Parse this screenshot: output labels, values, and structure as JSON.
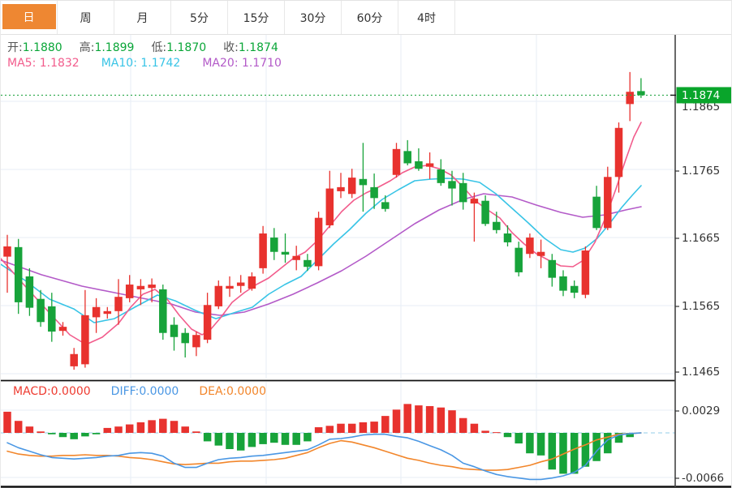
{
  "toolbar": {
    "tabs": [
      {
        "label": "日",
        "name": "tab-day",
        "active": true
      },
      {
        "label": "周",
        "name": "tab-week",
        "active": false
      },
      {
        "label": "月",
        "name": "tab-month",
        "active": false
      },
      {
        "label": "5分",
        "name": "tab-5min",
        "active": false
      },
      {
        "label": "15分",
        "name": "tab-15min",
        "active": false
      },
      {
        "label": "30分",
        "name": "tab-30min",
        "active": false
      },
      {
        "label": "60分",
        "name": "tab-60min",
        "active": false
      },
      {
        "label": "4时",
        "name": "tab-4hour",
        "active": false
      }
    ]
  },
  "info_row_ohlc": [
    {
      "label": "开:",
      "value": "1.1880"
    },
    {
      "label": "高:",
      "value": "1.1899"
    },
    {
      "label": "低:",
      "value": "1.1870"
    },
    {
      "label": "收:",
      "value": "1.1874"
    }
  ],
  "info_row_ma": [
    {
      "text": "MA5: 1.1832",
      "color": "#f25c8c"
    },
    {
      "text": "MA10: 1.1742",
      "color": "#38c4e6"
    },
    {
      "text": "MA20: 1.1710",
      "color": "#b35ac8"
    }
  ],
  "macd_row": [
    {
      "text": "MACD:0.0000",
      "color": "#ee3b30"
    },
    {
      "text": "DIFF:0.0000",
      "color": "#4a97e4"
    },
    {
      "text": "DEA:0.0000",
      "color": "#f2862b"
    }
  ],
  "colors": {
    "accent_tab": "#ee8732",
    "candle_up": "#e8322e",
    "candle_down": "#17a33a",
    "ma5": "#f25c8c",
    "ma10": "#38c4e6",
    "ma20": "#b35ac8",
    "ohlc_value": "#0aa638",
    "grid": "#e7edf5",
    "axis_text": "#333333",
    "axis_line": "#444444",
    "divider": "#111111",
    "price_box": "#09a52b",
    "dotted_price_line": "#2ba84a",
    "diff_line": "#4a97e4",
    "dea_line": "#f2862b",
    "macd_zero_dash": "#a9d7ee"
  },
  "chart_data": {
    "type": "candlestick",
    "panels": [
      "price",
      "MACD"
    ],
    "grid": true,
    "ohlc_display": {
      "open": "1.1880",
      "high": "1.1899",
      "low": "1.1870",
      "close": "1.1874"
    },
    "ma_display": {
      "MA5": "1.1832",
      "MA10": "1.1742",
      "MA20": "1.1710"
    },
    "y_axis_ticks": [
      "1.1865",
      "1.1765",
      "1.1665",
      "1.1565",
      "1.1465"
    ],
    "y_axis_tick_prices": [
      1.1865,
      1.1765,
      1.1665,
      1.1565,
      1.1465
    ],
    "current_price": "1.1874",
    "candles": [
      [
        1.1637,
        1.1669,
        1.1584,
        1.1652
      ],
      [
        1.1651,
        1.1663,
        1.1553,
        1.157
      ],
      [
        1.1608,
        1.162,
        1.155,
        1.1562
      ],
      [
        1.1575,
        1.1588,
        1.1534,
        1.1541
      ],
      [
        1.1564,
        1.1584,
        1.1512,
        1.1527
      ],
      [
        1.1528,
        1.1541,
        1.1521,
        1.1534
      ],
      [
        1.1476,
        1.1503,
        1.1471,
        1.1494
      ],
      [
        1.1479,
        1.1588,
        1.1474,
        1.1551
      ],
      [
        1.1548,
        1.1576,
        1.1525,
        1.1563
      ],
      [
        1.1553,
        1.1563,
        1.1546,
        1.1557
      ],
      [
        1.1557,
        1.1604,
        1.1537,
        1.1578
      ],
      [
        1.1576,
        1.161,
        1.157,
        1.1596
      ],
      [
        1.1589,
        1.1604,
        1.1566,
        1.1594
      ],
      [
        1.1591,
        1.1605,
        1.157,
        1.1596
      ],
      [
        1.1589,
        1.1596,
        1.1515,
        1.1525
      ],
      [
        1.1537,
        1.1548,
        1.1499,
        1.1519
      ],
      [
        1.1525,
        1.1532,
        1.1489,
        1.151
      ],
      [
        1.1504,
        1.1527,
        1.1491,
        1.1522
      ],
      [
        1.1515,
        1.1584,
        1.151,
        1.1566
      ],
      [
        1.1564,
        1.1602,
        1.156,
        1.1594
      ],
      [
        1.159,
        1.1608,
        1.1578,
        1.1594
      ],
      [
        1.1594,
        1.161,
        1.1584,
        1.1599
      ],
      [
        1.159,
        1.1614,
        1.1587,
        1.1608
      ],
      [
        1.162,
        1.1682,
        1.1612,
        1.1671
      ],
      [
        1.1665,
        1.1679,
        1.1632,
        1.1644
      ],
      [
        1.1644,
        1.1671,
        1.1628,
        1.164
      ],
      [
        1.1632,
        1.1653,
        1.1617,
        1.1638
      ],
      [
        1.1632,
        1.1641,
        1.1616,
        1.1622
      ],
      [
        1.1623,
        1.1703,
        1.1617,
        1.1694
      ],
      [
        1.1683,
        1.1763,
        1.1679,
        1.1737
      ],
      [
        1.1733,
        1.176,
        1.1723,
        1.1739
      ],
      [
        1.1729,
        1.1766,
        1.1723,
        1.1753
      ],
      [
        1.1751,
        1.1804,
        1.1703,
        1.1742
      ],
      [
        1.1739,
        1.1759,
        1.1707,
        1.1723
      ],
      [
        1.1717,
        1.1727,
        1.1703,
        1.1707
      ],
      [
        1.1757,
        1.1804,
        1.1753,
        1.1795
      ],
      [
        1.1792,
        1.1808,
        1.1771,
        1.1774
      ],
      [
        1.1777,
        1.1796,
        1.1763,
        1.1766
      ],
      [
        1.1769,
        1.179,
        1.1751,
        1.1774
      ],
      [
        1.1765,
        1.178,
        1.1741,
        1.1745
      ],
      [
        1.1748,
        1.1763,
        1.1712,
        1.1737
      ],
      [
        1.1745,
        1.176,
        1.1706,
        1.1717
      ],
      [
        1.1715,
        1.1731,
        1.1659,
        1.1722
      ],
      [
        1.1719,
        1.1727,
        1.1682,
        1.1685
      ],
      [
        1.1688,
        1.1703,
        1.1671,
        1.1676
      ],
      [
        1.1671,
        1.1683,
        1.1652,
        1.1658
      ],
      [
        1.165,
        1.1659,
        1.1608,
        1.1614
      ],
      [
        1.1641,
        1.1671,
        1.1635,
        1.1665
      ],
      [
        1.1638,
        1.1662,
        1.162,
        1.1644
      ],
      [
        1.1632,
        1.1641,
        1.1593,
        1.1606
      ],
      [
        1.1608,
        1.1617,
        1.1579,
        1.1587
      ],
      [
        1.1594,
        1.1602,
        1.1576,
        1.1584
      ],
      [
        1.1581,
        1.1652,
        1.1576,
        1.1646
      ],
      [
        1.1725,
        1.1741,
        1.1676,
        1.1679
      ],
      [
        1.1679,
        1.1769,
        1.1676,
        1.1754
      ],
      [
        1.1754,
        1.1834,
        1.1731,
        1.1826
      ],
      [
        1.1861,
        1.1908,
        1.1836,
        1.1879
      ],
      [
        1.188,
        1.1899,
        1.187,
        1.1874
      ]
    ],
    "ma5_points": [
      [
        0,
        1.16341
      ],
      [
        30,
        1.15937
      ],
      [
        60,
        1.15544
      ],
      [
        85,
        1.15223
      ],
      [
        105,
        1.1508
      ],
      [
        125,
        1.15187
      ],
      [
        145,
        1.15389
      ],
      [
        160,
        1.15627
      ],
      [
        175,
        1.15818
      ],
      [
        190,
        1.15889
      ],
      [
        205,
        1.15746
      ],
      [
        220,
        1.15508
      ],
      [
        235,
        1.15306
      ],
      [
        248,
        1.15223
      ],
      [
        258,
        1.15294
      ],
      [
        270,
        1.15461
      ],
      [
        285,
        1.15699
      ],
      [
        300,
        1.15842
      ],
      [
        315,
        1.15961
      ],
      [
        330,
        1.16056
      ],
      [
        345,
        1.16199
      ],
      [
        360,
        1.16341
      ],
      [
        375,
        1.16437
      ],
      [
        390,
        1.16603
      ],
      [
        405,
        1.16817
      ],
      [
        420,
        1.17032
      ],
      [
        435,
        1.17198
      ],
      [
        450,
        1.17305
      ],
      [
        465,
        1.17389
      ],
      [
        480,
        1.17484
      ],
      [
        495,
        1.17603
      ],
      [
        510,
        1.17686
      ],
      [
        525,
        1.1771
      ],
      [
        540,
        1.17662
      ],
      [
        555,
        1.17567
      ],
      [
        570,
        1.17389
      ],
      [
        585,
        1.17186
      ],
      [
        600,
        1.17055
      ],
      [
        615,
        1.16936
      ],
      [
        630,
        1.16722
      ],
      [
        645,
        1.16556
      ],
      [
        660,
        1.16413
      ],
      [
        675,
        1.16318
      ],
      [
        690,
        1.16234
      ],
      [
        705,
        1.16222
      ],
      [
        718,
        1.16318
      ],
      [
        732,
        1.16579
      ],
      [
        745,
        1.16936
      ],
      [
        758,
        1.17365
      ],
      [
        770,
        1.17793
      ],
      [
        780,
        1.18126
      ],
      [
        789,
        1.18341
      ]
    ],
    "ma10_points": [
      [
        0,
        1.16258
      ],
      [
        30,
        1.1602
      ],
      [
        60,
        1.15746
      ],
      [
        90,
        1.15603
      ],
      [
        115,
        1.15401
      ],
      [
        140,
        1.1546
      ],
      [
        165,
        1.15627
      ],
      [
        193,
        1.15806
      ],
      [
        215,
        1.15722
      ],
      [
        240,
        1.1558
      ],
      [
        265,
        1.1546
      ],
      [
        290,
        1.15556
      ],
      [
        310,
        1.15627
      ],
      [
        330,
        1.15818
      ],
      [
        350,
        1.15961
      ],
      [
        370,
        1.1608
      ],
      [
        390,
        1.16318
      ],
      [
        410,
        1.16556
      ],
      [
        430,
        1.1677
      ],
      [
        450,
        1.17008
      ],
      [
        470,
        1.1721
      ],
      [
        490,
        1.17353
      ],
      [
        510,
        1.17484
      ],
      [
        530,
        1.17508
      ],
      [
        550,
        1.1752
      ],
      [
        570,
        1.17508
      ],
      [
        590,
        1.1746
      ],
      [
        610,
        1.17293
      ],
      [
        630,
        1.17079
      ],
      [
        650,
        1.16865
      ],
      [
        670,
        1.16639
      ],
      [
        690,
        1.16472
      ],
      [
        705,
        1.16437
      ],
      [
        720,
        1.16496
      ],
      [
        735,
        1.16639
      ],
      [
        750,
        1.16853
      ],
      [
        765,
        1.17091
      ],
      [
        778,
        1.1727
      ],
      [
        789,
        1.17412
      ]
    ],
    "ma20_points": [
      [
        0,
        1.16318
      ],
      [
        50,
        1.16104
      ],
      [
        100,
        1.15937
      ],
      [
        150,
        1.15818
      ],
      [
        180,
        1.15746
      ],
      [
        210,
        1.15675
      ],
      [
        240,
        1.15556
      ],
      [
        270,
        1.15508
      ],
      [
        300,
        1.15556
      ],
      [
        330,
        1.15675
      ],
      [
        360,
        1.15818
      ],
      [
        390,
        1.15984
      ],
      [
        420,
        1.16163
      ],
      [
        450,
        1.16377
      ],
      [
        480,
        1.16615
      ],
      [
        510,
        1.16853
      ],
      [
        540,
        1.17055
      ],
      [
        570,
        1.1721
      ],
      [
        595,
        1.17293
      ],
      [
        630,
        1.17246
      ],
      [
        660,
        1.17127
      ],
      [
        690,
        1.1702
      ],
      [
        717,
        1.16948
      ],
      [
        745,
        1.16984
      ],
      [
        770,
        1.17055
      ],
      [
        789,
        1.17103
      ]
    ],
    "macd": {
      "display": {
        "MACD": "0.0000",
        "DIFF": "0.0000",
        "DEA": "0.0000"
      },
      "y_axis_ticks": [
        "0.0029",
        "-0.0066"
      ],
      "y_axis_tick_values": [
        0.0029,
        -0.0066
      ],
      "histogram": [
        0.003,
        0.0017,
        0.0009,
        0.0002,
        -0.0002,
        -0.0006,
        -0.0009,
        -0.0005,
        -0.0002,
        0.0007,
        0.0009,
        0.0012,
        0.0015,
        0.0018,
        0.002,
        0.0017,
        0.0009,
        0.0002,
        -0.0012,
        -0.0018,
        -0.0023,
        -0.0025,
        -0.002,
        -0.0016,
        -0.0014,
        -0.0017,
        -0.0017,
        -0.0012,
        0.0008,
        0.001,
        0.0013,
        0.0013,
        0.0015,
        0.0016,
        0.0024,
        0.0033,
        0.0041,
        0.0039,
        0.0038,
        0.0036,
        0.0032,
        0.0021,
        0.0013,
        0.0003,
        0.0001,
        -0.0006,
        -0.0015,
        -0.0029,
        -0.0032,
        -0.0052,
        -0.0058,
        -0.0058,
        -0.0048,
        -0.004,
        -0.0029,
        -0.0014,
        -0.0006,
        0.0
      ],
      "diff": [
        -0.0014,
        -0.0021,
        -0.0026,
        -0.0031,
        -0.0035,
        -0.0036,
        -0.0037,
        -0.0036,
        -0.0035,
        -0.0033,
        -0.0032,
        -0.0029,
        -0.0028,
        -0.0029,
        -0.0033,
        -0.0043,
        -0.0049,
        -0.0049,
        -0.0043,
        -0.0038,
        -0.0036,
        -0.0035,
        -0.0033,
        -0.0032,
        -0.003,
        -0.0028,
        -0.0026,
        -0.0024,
        -0.0017,
        -0.0009,
        -0.0008,
        -0.0006,
        -0.0003,
        -0.0002,
        -0.0002,
        -0.0005,
        -0.0007,
        -0.0012,
        -0.0018,
        -0.0024,
        -0.0032,
        -0.0043,
        -0.0048,
        -0.0054,
        -0.0059,
        -0.0062,
        -0.0064,
        -0.0066,
        -0.0066,
        -0.0064,
        -0.0061,
        -0.0056,
        -0.0046,
        -0.0026,
        -0.001,
        -0.0003,
        -0.0001,
        0.0
      ],
      "dea": [
        -0.0026,
        -0.003,
        -0.0032,
        -0.0033,
        -0.0033,
        -0.0032,
        -0.0032,
        -0.0031,
        -0.0032,
        -0.0032,
        -0.0033,
        -0.0035,
        -0.0036,
        -0.0038,
        -0.0041,
        -0.0044,
        -0.0045,
        -0.0044,
        -0.0043,
        -0.0043,
        -0.0041,
        -0.004,
        -0.004,
        -0.0039,
        -0.0038,
        -0.0036,
        -0.0032,
        -0.0028,
        -0.0021,
        -0.0015,
        -0.0011,
        -0.0013,
        -0.0017,
        -0.0021,
        -0.0026,
        -0.0031,
        -0.0036,
        -0.0039,
        -0.0043,
        -0.0046,
        -0.0048,
        -0.0051,
        -0.0052,
        -0.0053,
        -0.0053,
        -0.0052,
        -0.0049,
        -0.0046,
        -0.0041,
        -0.0037,
        -0.003,
        -0.0023,
        -0.0017,
        -0.001,
        -0.0006,
        -0.0002,
        -0.0001,
        0.0
      ]
    }
  }
}
